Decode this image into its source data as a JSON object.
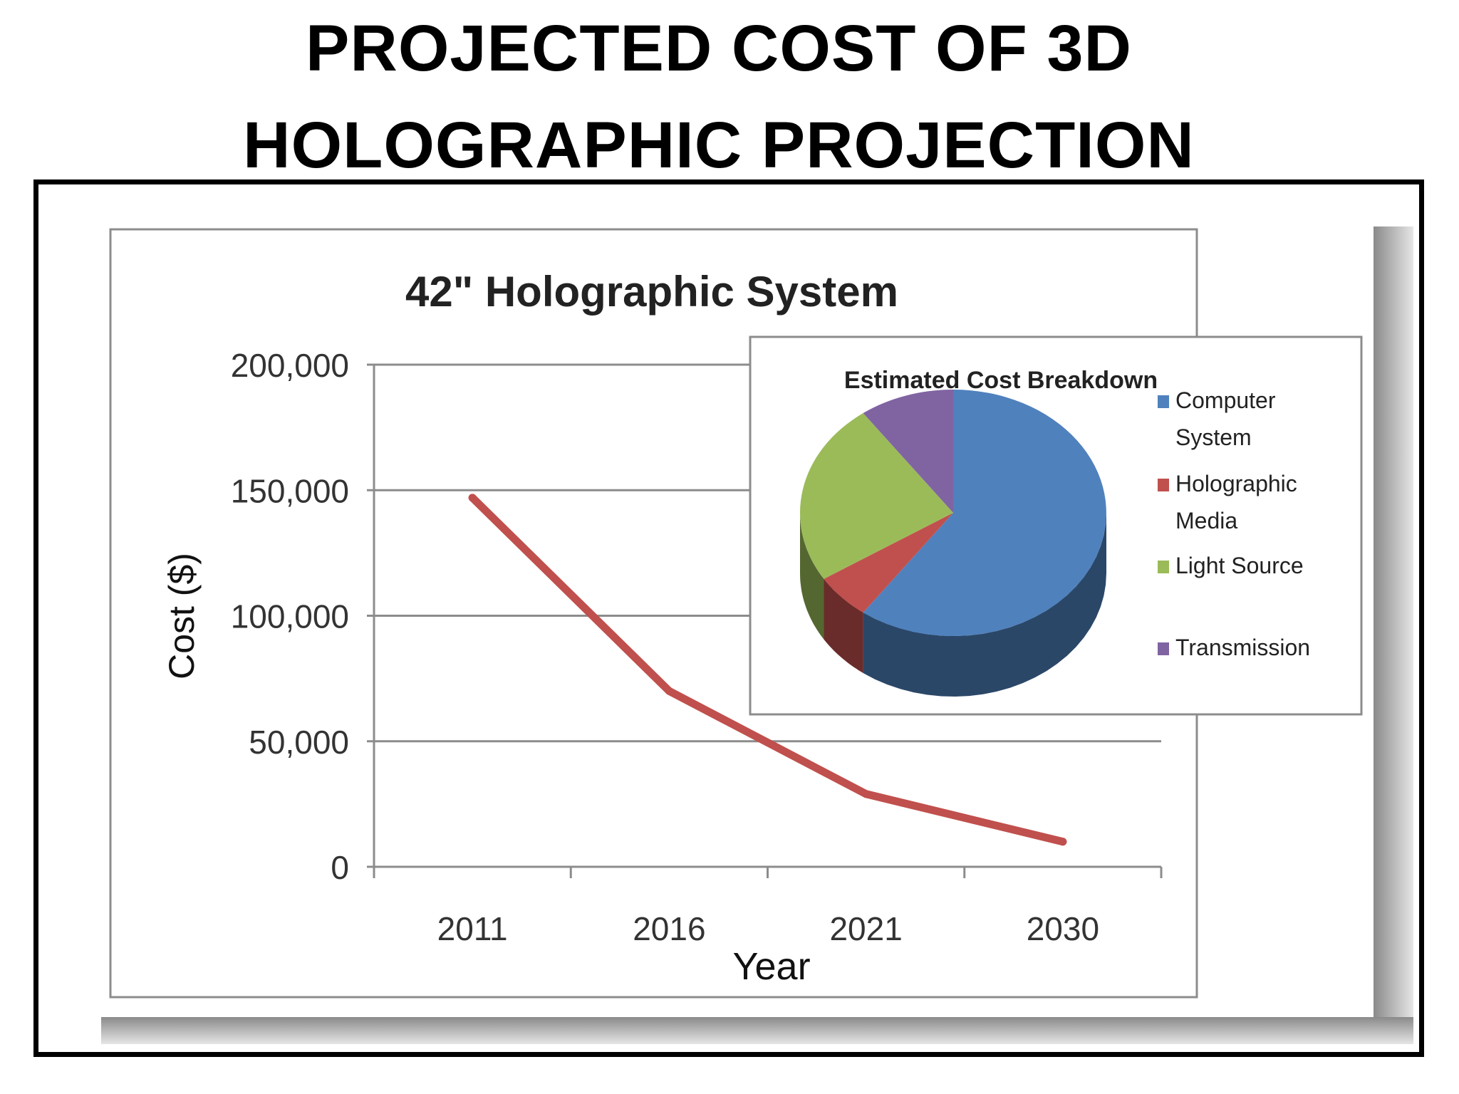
{
  "page": {
    "title_line1": "PROJECTED COST OF 3D",
    "title_line2": "HOLOGRAPHIC PROJECTION"
  },
  "chart_data": [
    {
      "type": "line",
      "title": "42\" Holographic System",
      "xlabel": "Year",
      "ylabel": "Cost ($)",
      "ylim": [
        0,
        200000
      ],
      "yticks": [
        0,
        50000,
        100000,
        150000,
        200000
      ],
      "ytick_labels": [
        "0",
        "50,000",
        "100,000",
        "150,000",
        "200,000"
      ],
      "categories": [
        "2011",
        "2016",
        "2021",
        "2030"
      ],
      "series": [
        {
          "values": [
            147000,
            70000,
            29000,
            10000
          ],
          "color": "#c0504d"
        }
      ],
      "grid": true
    },
    {
      "type": "pie",
      "title": "Estimated Cost Breakdown",
      "legend_position": "right",
      "labels": [
        "Computer System",
        "Holographic Media",
        "Light Source",
        "Transmission"
      ],
      "legend_lines": [
        [
          "Computer",
          "System"
        ],
        [
          "Holographic",
          "Media"
        ],
        [
          "Light Source"
        ],
        [
          "Transmission"
        ]
      ],
      "values": [
        60,
        6,
        24,
        10
      ],
      "colors": [
        "#4f81bd",
        "#c0504d",
        "#9bbb59",
        "#8064a2"
      ]
    }
  ]
}
